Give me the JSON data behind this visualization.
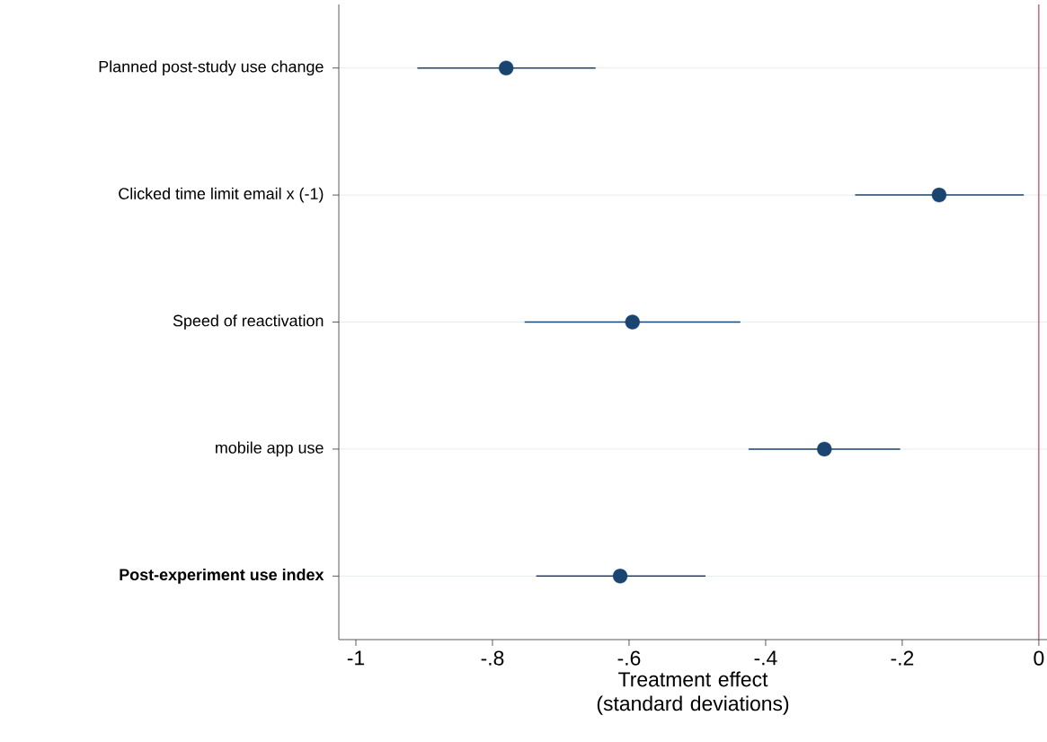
{
  "chart_data": {
    "type": "scatter",
    "orientation": "horizontal",
    "xlabel": "Treatment effect (standard deviations)",
    "categories": [
      "Planned post-study use change",
      "Clicked time limit email x (-1)",
      "Speed of reactivation",
      "mobile app use",
      "Post-experiment use index"
    ],
    "values": [
      -0.78,
      -0.146,
      -0.595,
      -0.314,
      -0.613
    ],
    "errors": [
      [
        -0.91,
        -0.649
      ],
      [
        -0.269,
        -0.022
      ],
      [
        -0.753,
        -0.437
      ],
      [
        -0.425,
        -0.203
      ],
      [
        -0.736,
        -0.488
      ]
    ],
    "color": "#1a4570",
    "marker": "circle",
    "grid": "y",
    "xlim": [
      -1.025,
      0.012
    ],
    "xticks": [
      -1,
      {
        "value": -0.8,
        "label": "-.8"
      },
      {
        "value": -0.6,
        "label": "-.6"
      },
      {
        "value": -0.4,
        "label": "-.4"
      },
      {
        "value": -0.2,
        "label": "-.2"
      },
      0
    ],
    "ref_lines": [
      {
        "axis": "x",
        "value": 0,
        "color": "#b5123e"
      }
    ]
  }
}
